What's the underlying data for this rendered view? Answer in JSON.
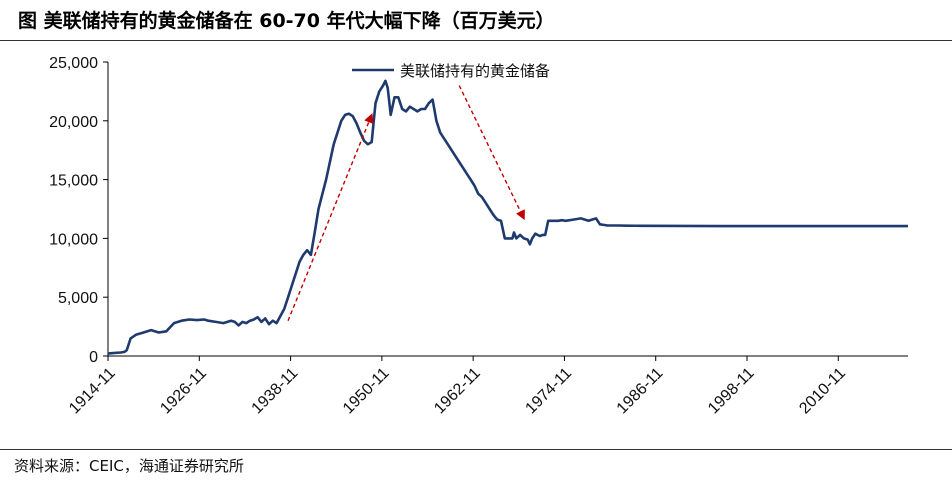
{
  "title": "图  美联储持有的黄金储备在 60-70 年代大幅下降（百万美元）",
  "source": "资料来源：CEIC，海通证券研究所",
  "colors": {
    "line": "#1f3a6e",
    "arrow": "#c00000",
    "axis": "#000000"
  },
  "chart_data": {
    "type": "line",
    "title": "图  美联储持有的黄金储备在 60-70 年代大幅下降（百万美元）",
    "xlabel": "",
    "ylabel": "",
    "x_tick_labels": [
      "1914-11",
      "1926-11",
      "1938-11",
      "1950-11",
      "1962-11",
      "1974-11",
      "1986-11",
      "1998-11",
      "2010-11"
    ],
    "x_range": [
      1914.83,
      2020.0
    ],
    "y_tick_labels": [
      "0",
      "5,000",
      "10,000",
      "15,000",
      "20,000",
      "25,000"
    ],
    "ylim": [
      0,
      25000
    ],
    "grid": false,
    "legend_position": "top-center",
    "series": [
      {
        "name": "美联储持有的黄金储备",
        "x": [
          1914.83,
          1915.5,
          1916.5,
          1917.0,
          1917.3,
          1917.8,
          1918.5,
          1919.5,
          1920.5,
          1921.5,
          1922.5,
          1923.5,
          1924.5,
          1925.5,
          1926.5,
          1927.5,
          1928.0,
          1929.0,
          1930.0,
          1931.0,
          1931.5,
          1932.0,
          1932.5,
          1933.0,
          1933.5,
          1934.0,
          1934.5,
          1935.0,
          1935.5,
          1936.0,
          1936.5,
          1937.0,
          1937.5,
          1938.0,
          1938.5,
          1939.0,
          1939.5,
          1940.0,
          1940.5,
          1941.0,
          1941.5,
          1942.0,
          1942.5,
          1943.5,
          1944.5,
          1945.5,
          1946.0,
          1946.5,
          1947.0,
          1947.5,
          1948.0,
          1948.5,
          1949.0,
          1949.5,
          1950.0,
          1950.5,
          1951.0,
          1951.3,
          1951.6,
          1952.0,
          1952.5,
          1953.0,
          1953.5,
          1954.0,
          1954.5,
          1955.0,
          1955.5,
          1956.0,
          1956.5,
          1957.0,
          1957.5,
          1958.0,
          1958.5,
          1959.0,
          1959.5,
          1960.0,
          1960.5,
          1961.0,
          1961.5,
          1962.0,
          1962.5,
          1963.0,
          1963.5,
          1964.0,
          1964.5,
          1965.0,
          1965.5,
          1966.0,
          1966.5,
          1967.0,
          1967.5,
          1968.0,
          1968.2,
          1968.5,
          1969.0,
          1969.5,
          1970.0,
          1970.3,
          1970.6,
          1971.0,
          1971.3,
          1971.6,
          1972.0,
          1972.3,
          1972.7,
          1973.0,
          1973.5,
          1974.0,
          1974.5,
          1975.0,
          1976.0,
          1977.0,
          1978.0,
          1979.0,
          1979.5,
          1980.0,
          1980.5,
          1981.0,
          1982.0,
          1983.0,
          1985.0,
          1990.0,
          1995.0,
          2000.0,
          2005.0,
          2010.0,
          2015.0,
          2020.0
        ],
        "values": [
          200,
          250,
          300,
          350,
          500,
          1500,
          1800,
          2000,
          2200,
          2000,
          2100,
          2800,
          3000,
          3100,
          3050,
          3100,
          3000,
          2900,
          2800,
          3000,
          2900,
          2600,
          2900,
          2800,
          3000,
          3100,
          3300,
          2900,
          3200,
          2700,
          3000,
          2800,
          3400,
          4000,
          5000,
          6000,
          7000,
          8000,
          8600,
          9000,
          8600,
          10500,
          12500,
          15000,
          18000,
          20000,
          20500,
          20600,
          20400,
          19800,
          19000,
          18300,
          18000,
          18200,
          21500,
          22500,
          23000,
          23400,
          22800,
          20500,
          22000,
          22000,
          21000,
          20800,
          21200,
          21000,
          20800,
          21000,
          21000,
          21500,
          21800,
          20000,
          19000,
          18500,
          18000,
          17500,
          17000,
          16500,
          16000,
          15500,
          15000,
          14500,
          13800,
          13500,
          13000,
          12500,
          12000,
          11600,
          11500,
          10000,
          10000,
          10000,
          10500,
          10000,
          10300,
          10000,
          9900,
          9500,
          10000,
          10400,
          10300,
          10200,
          10300,
          10300,
          11500,
          11500,
          11500,
          11500,
          11550,
          11500,
          11600,
          11700,
          11500,
          11700,
          11200,
          11150,
          11100,
          11100,
          11100,
          11080,
          11070,
          11060,
          11050,
          11050,
          11050,
          11050,
          11050,
          11050
        ]
      }
    ],
    "annotations": [
      {
        "type": "arrow",
        "style": "dashed",
        "color": "#c00000",
        "from": [
          1938.5,
          3000
        ],
        "to": [
          1949.5,
          20500
        ]
      },
      {
        "type": "arrow",
        "style": "dashed",
        "color": "#c00000",
        "from": [
          1961.0,
          23000
        ],
        "to": [
          1969.5,
          11700
        ]
      }
    ]
  }
}
